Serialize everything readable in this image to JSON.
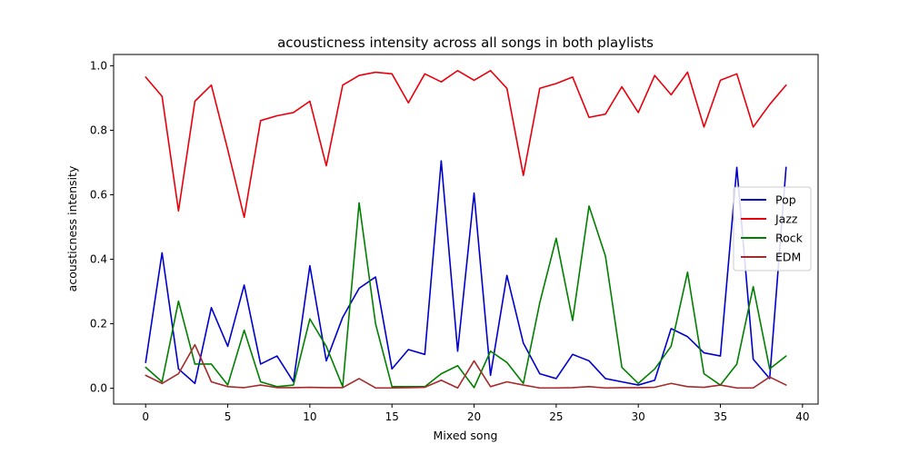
{
  "chart_data": {
    "type": "line",
    "title": "acousticness intensity across all songs in both playlists",
    "xlabel": "Mixed song",
    "ylabel": "acousticness intensity",
    "xlim": [
      -1.95,
      40.95
    ],
    "ylim": [
      -0.049,
      1.035
    ],
    "x_ticks": [
      0,
      5,
      10,
      15,
      20,
      25,
      30,
      35,
      40
    ],
    "x_tick_labels": [
      "0",
      "5",
      "10",
      "15",
      "20",
      "25",
      "30",
      "35",
      "40"
    ],
    "y_ticks": [
      0.0,
      0.2,
      0.4,
      0.6,
      0.8,
      1.0
    ],
    "y_tick_labels": [
      "0.0",
      "0.2",
      "0.4",
      "0.6",
      "0.8",
      "1.0"
    ],
    "grid": false,
    "legend_position": "center-right",
    "x": [
      0,
      1,
      2,
      3,
      4,
      5,
      6,
      7,
      8,
      9,
      10,
      11,
      12,
      13,
      14,
      15,
      16,
      17,
      18,
      19,
      20,
      21,
      22,
      23,
      24,
      25,
      26,
      27,
      28,
      29,
      30,
      31,
      32,
      33,
      34,
      35,
      36,
      37,
      38,
      39
    ],
    "series": [
      {
        "name": "Pop",
        "color": "#0000cc",
        "values": [
          0.08,
          0.42,
          0.06,
          0.015,
          0.25,
          0.13,
          0.32,
          0.075,
          0.1,
          0.02,
          0.38,
          0.085,
          0.22,
          0.31,
          0.345,
          0.06,
          0.12,
          0.105,
          0.705,
          0.115,
          0.605,
          0.04,
          0.35,
          0.14,
          0.045,
          0.03,
          0.105,
          0.085,
          0.03,
          0.02,
          0.01,
          0.025,
          0.185,
          0.16,
          0.11,
          0.1,
          0.685,
          0.09,
          0.03,
          0.685
        ]
      },
      {
        "name": "Jazz",
        "color": "#e8000b",
        "values": [
          0.965,
          0.905,
          0.55,
          0.89,
          0.94,
          0.74,
          0.53,
          0.83,
          0.845,
          0.855,
          0.89,
          0.69,
          0.94,
          0.97,
          0.98,
          0.975,
          0.885,
          0.975,
          0.95,
          0.985,
          0.955,
          0.985,
          0.93,
          0.66,
          0.93,
          0.945,
          0.965,
          0.84,
          0.85,
          0.935,
          0.855,
          0.97,
          0.91,
          0.98,
          0.81,
          0.955,
          0.975,
          0.81,
          0.88,
          0.94
        ]
      },
      {
        "name": "Rock",
        "color": "#007f00",
        "values": [
          0.065,
          0.02,
          0.27,
          0.075,
          0.075,
          0.01,
          0.18,
          0.02,
          0.005,
          0.01,
          0.215,
          0.13,
          0.005,
          0.575,
          0.2,
          0.005,
          0.005,
          0.005,
          0.045,
          0.07,
          0.002,
          0.115,
          0.08,
          0.015,
          0.265,
          0.465,
          0.21,
          0.565,
          0.41,
          0.065,
          0.015,
          0.06,
          0.13,
          0.36,
          0.045,
          0.01,
          0.075,
          0.315,
          0.06,
          0.1
        ]
      },
      {
        "name": "EDM",
        "color": "#a52a2a",
        "values": [
          0.04,
          0.015,
          0.045,
          0.135,
          0.02,
          0.005,
          0.002,
          0.01,
          0.002,
          0.002,
          0.003,
          0.002,
          0.002,
          0.03,
          0.001,
          0.001,
          0.002,
          0.003,
          0.025,
          0.001,
          0.085,
          0.005,
          0.02,
          0.01,
          0.001,
          0.001,
          0.002,
          0.005,
          0.001,
          0.002,
          0.002,
          0.003,
          0.015,
          0.005,
          0.003,
          0.01,
          0.001,
          0.001,
          0.035,
          0.01
        ]
      }
    ]
  }
}
